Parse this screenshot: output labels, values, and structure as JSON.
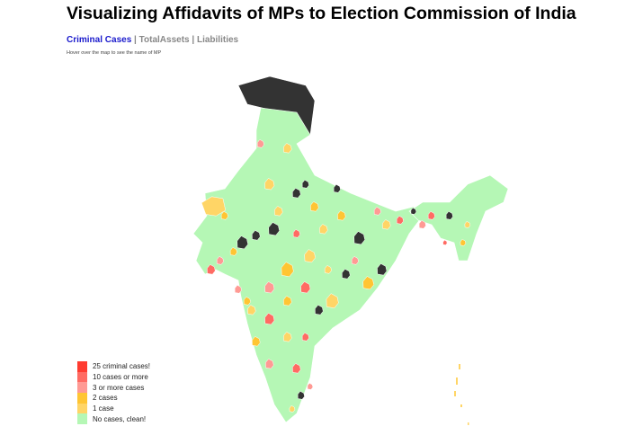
{
  "title": "Visualizing Affidavits of MPs to Election Commission of India",
  "nav": {
    "items": [
      "Criminal Cases",
      "TotalAssets",
      "Liabilities"
    ],
    "separator": "|",
    "active": "Criminal Cases"
  },
  "hint": "Hover over the map to see the name of MP",
  "chart_data": {
    "type": "choropleth-map",
    "region": "India (parliamentary constituencies)",
    "metric": "Criminal Cases",
    "legend_placement": "bottom-left",
    "legend": [
      {
        "label": "25 criminal cases!",
        "color": "#ff3b30"
      },
      {
        "label": "10 cases or more",
        "color": "#ff6b63"
      },
      {
        "label": "3 or more cases",
        "color": "#ff9a94"
      },
      {
        "label": "2 cases",
        "color": "#ffc533"
      },
      {
        "label": "1 case",
        "color": "#ffd566"
      },
      {
        "label": "No cases, clean!",
        "color": "#b5f7b5"
      }
    ],
    "no_data_color": "#333333"
  }
}
